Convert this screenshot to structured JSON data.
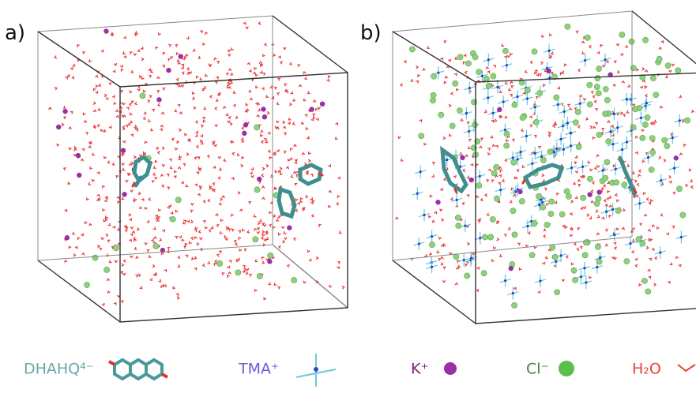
{
  "panels": [
    {
      "label": "a)"
    },
    {
      "label": "b)"
    }
  ],
  "legend": [
    {
      "label": "DHAHQ⁴⁻"
    },
    {
      "label": "TMA⁺"
    },
    {
      "label": "K⁺"
    },
    {
      "label": "Cl⁻"
    },
    {
      "label": "H₂O"
    }
  ]
}
